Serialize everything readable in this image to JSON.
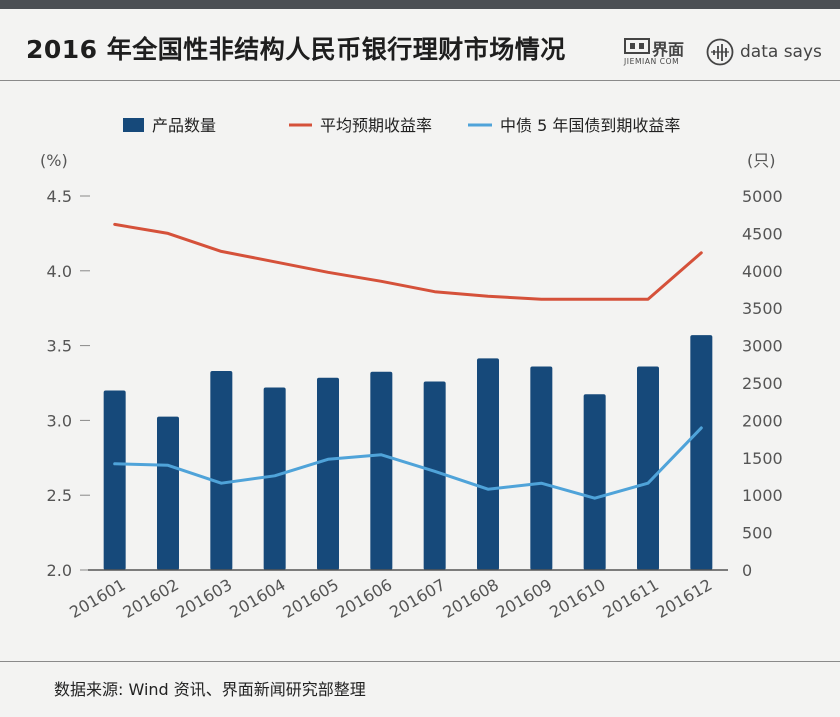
{
  "header": {
    "title": "2016 年全国性非结构人民币银行理财市场情况",
    "brand_jiemian_cn": "界面",
    "brand_jiemian_en": "JIEMIAN COM",
    "brand_datasays": "data says"
  },
  "footer": {
    "source": "数据来源: Wind 资讯、界面新闻研究部整理"
  },
  "colors": {
    "bar": "#16497a",
    "line_expected": "#d5513a",
    "line_treasury": "#4fa3d9",
    "axis_text": "#555555"
  },
  "chart_data": {
    "type": "bar",
    "categories": [
      "201601",
      "201602",
      "201603",
      "201604",
      "201605",
      "201606",
      "201607",
      "201608",
      "201609",
      "201610",
      "201611",
      "201612"
    ],
    "series": [
      {
        "name": "产品数量",
        "kind": "bar",
        "axis": "right",
        "values": [
          2400,
          2050,
          2660,
          2440,
          2570,
          2650,
          2520,
          2830,
          2720,
          2350,
          2720,
          3140
        ]
      },
      {
        "name": "平均预期收益率",
        "kind": "line",
        "axis": "left",
        "values": [
          4.31,
          4.25,
          4.13,
          4.06,
          3.99,
          3.93,
          3.86,
          3.83,
          3.81,
          3.81,
          3.81,
          4.12
        ]
      },
      {
        "name": "中债 5 年国债到期收益率",
        "kind": "line",
        "axis": "left",
        "values": [
          2.71,
          2.7,
          2.58,
          2.63,
          2.74,
          2.77,
          2.66,
          2.54,
          2.58,
          2.48,
          2.58,
          2.95
        ]
      }
    ],
    "y_left": {
      "unit_label": "(%)",
      "ylim": [
        2.0,
        4.5
      ],
      "ticks": [
        "2.0",
        "2.5",
        "3.0",
        "3.5",
        "4.0",
        "4.5"
      ]
    },
    "y_right": {
      "unit_label": "(只)",
      "ylim": [
        0,
        5000
      ],
      "ticks": [
        "0",
        "500",
        "1000",
        "1500",
        "2000",
        "2500",
        "3000",
        "3500",
        "4000",
        "4500",
        "5000"
      ]
    },
    "legend_position": "top",
    "grid": false
  }
}
